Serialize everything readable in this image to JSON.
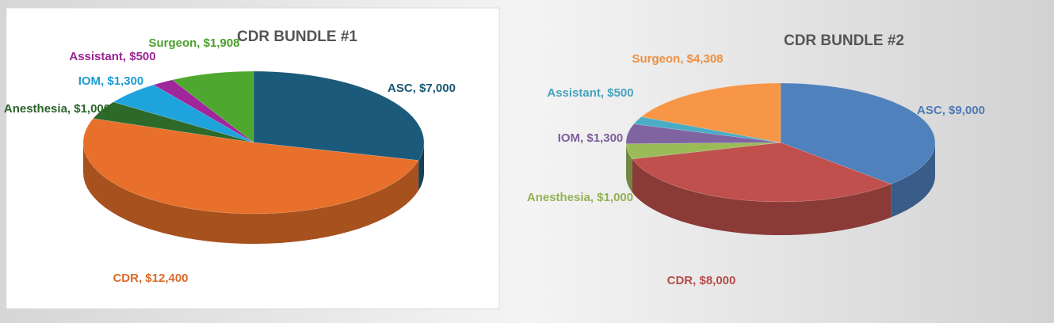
{
  "chart_data": [
    {
      "type": "pie",
      "title": "CDR BUNDLE #1",
      "values": [
        7000,
        12400,
        1000,
        1300,
        500,
        1908
      ],
      "value_labels": [
        "ASC, $7,000",
        "CDR, $12,400",
        "Anesthesia, $1,000",
        "IOM, $1,300",
        "Assistant, $500",
        "Surgeon, $1,908"
      ],
      "colors": [
        "#1b5a7a",
        "#e8702a",
        "#2d6a2a",
        "#1fa3dc",
        "#a0269b",
        "#4ea72e"
      ]
    },
    {
      "type": "pie",
      "title": "CDR BUNDLE #2",
      "values": [
        9000,
        8000,
        1000,
        1300,
        500,
        4308
      ],
      "value_labels": [
        "ASC, $9,000",
        "CDR, $8,000",
        "Anesthesia, $1,000",
        "IOM, $1,300",
        "Assistant, $500",
        "Surgeon, $4,308"
      ],
      "colors": [
        "#4f81bd",
        "#c0504d",
        "#9bbb59",
        "#8064a2",
        "#4bacc6",
        "#f79646"
      ]
    }
  ]
}
